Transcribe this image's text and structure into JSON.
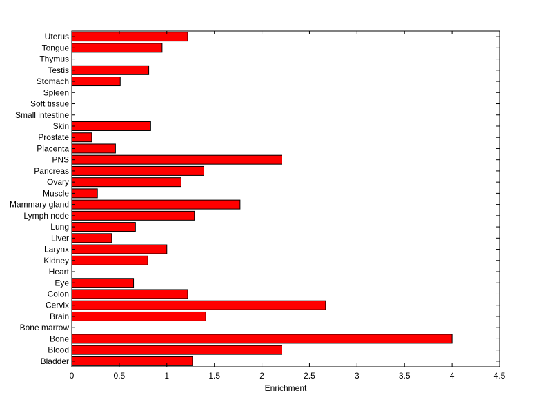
{
  "chart_data": {
    "type": "bar",
    "orientation": "horizontal",
    "title": "",
    "xlabel": "Enrichment",
    "ylabel": "",
    "xlim": [
      0,
      4.5
    ],
    "x_ticks": [
      "0",
      "0.5",
      "1",
      "1.5",
      "2",
      "2.5",
      "3",
      "3.5",
      "4",
      "4.5"
    ],
    "grid": false,
    "bar_color": "#ff0000",
    "edge_color": "#000000",
    "categories": [
      "Bladder",
      "Blood",
      "Bone",
      "Bone marrow",
      "Brain",
      "Cervix",
      "Colon",
      "Eye",
      "Heart",
      "Kidney",
      "Larynx",
      "Liver",
      "Lung",
      "Lymph node",
      "Mammary gland",
      "Muscle",
      "Ovary",
      "Pancreas",
      "PNS",
      "Placenta",
      "Prostate",
      "Skin",
      "Small intestine",
      "Soft tissue",
      "Spleen",
      "Stomach",
      "Testis",
      "Thymus",
      "Tongue",
      "Uterus"
    ],
    "values": [
      1.27,
      2.21,
      4.0,
      0,
      1.41,
      2.67,
      1.22,
      0.65,
      0,
      0.8,
      1.0,
      0.42,
      0.67,
      1.29,
      1.77,
      0.27,
      1.15,
      1.39,
      2.21,
      0.46,
      0.21,
      0.83,
      0,
      0,
      0,
      0.51,
      0.81,
      0,
      0.95,
      1.22
    ]
  }
}
